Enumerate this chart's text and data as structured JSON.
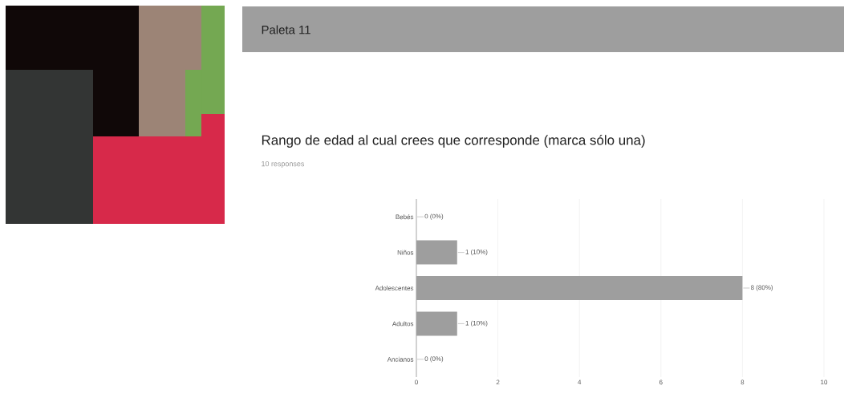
{
  "chart_data": {
    "type": "bar",
    "orientation": "horizontal",
    "title": "Rango de edad al cual crees que corresponde (marca sólo una)",
    "subtitle": "10 responses",
    "annotations": [
      "Paleta 11"
    ],
    "categories": [
      "Bebés",
      "Niños",
      "Adolescentes",
      "Adultos",
      "Ancianos"
    ],
    "values": [
      0,
      1,
      8,
      1,
      0
    ],
    "value_labels": [
      "0 (0%)",
      "1 (10%)",
      "8 (80%)",
      "1 (10%)",
      "0 (0%)"
    ],
    "color": "#9e9e9e",
    "xlim": [
      0,
      10
    ],
    "xticks": [
      0,
      2,
      4,
      6,
      8,
      10
    ],
    "grid": "x"
  }
}
